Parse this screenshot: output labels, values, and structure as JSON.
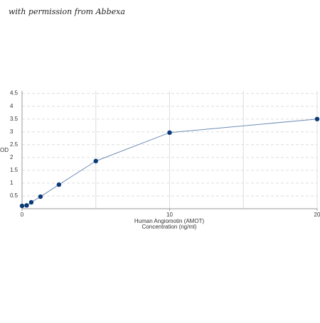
{
  "watermark": "with permission from Abbexa",
  "chart_data": {
    "type": "line",
    "markers": true,
    "x": [
      0,
      0.3125,
      0.625,
      1.25,
      2.5,
      5,
      10,
      20
    ],
    "series": [
      {
        "color": "#0b3a78",
        "values": [
          0.11,
          0.13,
          0.25,
          0.47,
          0.94,
          1.86,
          2.97,
          3.5
        ]
      }
    ],
    "xlim": [
      0,
      20
    ],
    "xticks": [
      0,
      10,
      20
    ],
    "xgrid_lines": [
      0,
      5,
      10,
      15,
      20
    ],
    "ylim": [
      0,
      4.6
    ],
    "yticks": [
      0.5,
      1,
      1.5,
      2,
      2.5,
      3,
      3.5,
      4,
      4.5
    ],
    "ylabel": "OD",
    "xlabel": [
      "Human Angiomotin (AMOT)",
      "Concentration (ng/ml)"
    ],
    "grid": true
  }
}
